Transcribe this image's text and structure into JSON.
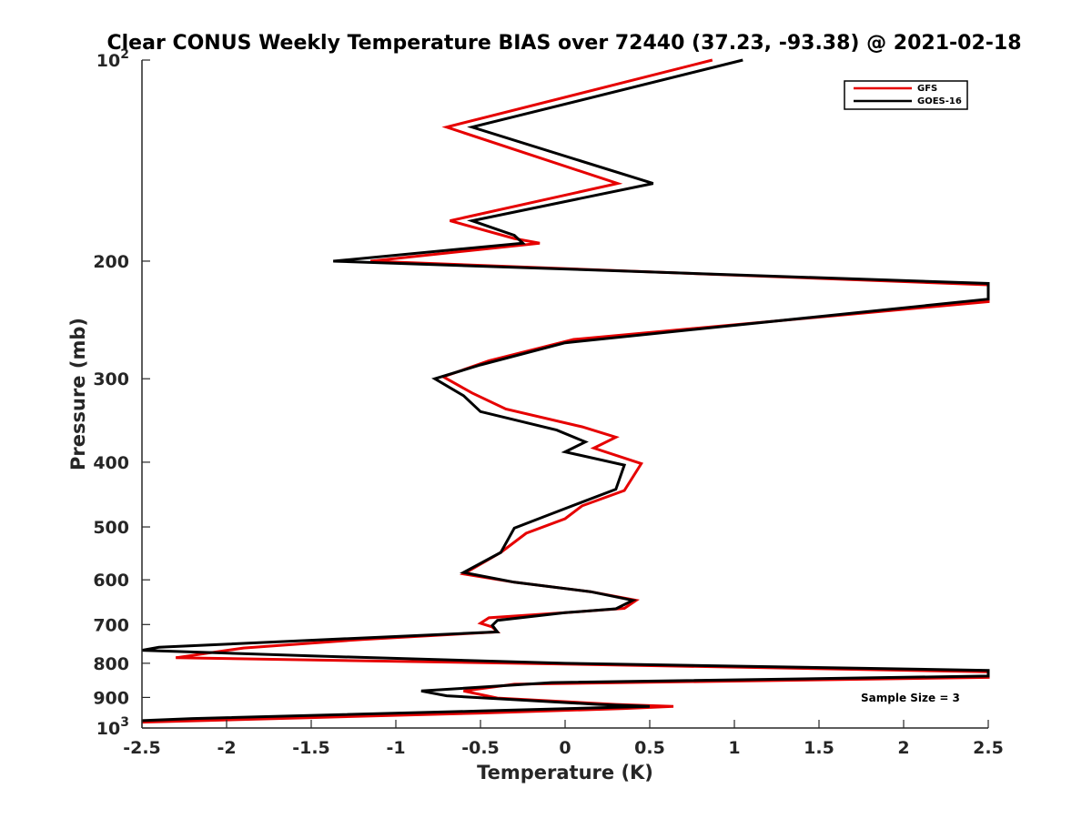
{
  "chart_data": {
    "type": "line",
    "title": "Clear CONUS Weekly Temperature BIAS over 72440 (37.23, -93.38) @ 2021-02-18",
    "xlabel": "Temperature (K)",
    "ylabel": "Pressure (mb)",
    "xlim": [
      -2.5,
      2.5
    ],
    "ylim": [
      100,
      1000
    ],
    "yscale": "log",
    "y_reversed": true,
    "x_ticks": [
      "-2.5",
      "-2",
      "-1.5",
      "-1",
      "-0.5",
      "0",
      "0.5",
      "1",
      "1.5",
      "2",
      "2.5"
    ],
    "x_tick_values": [
      -2.5,
      -2,
      -1.5,
      -1,
      -0.5,
      0,
      0.5,
      1,
      1.5,
      2,
      2.5
    ],
    "y_ticks": [
      {
        "value": 100,
        "base": "10",
        "exp": "2"
      },
      {
        "value": 200,
        "label": "200"
      },
      {
        "value": 300,
        "label": "300"
      },
      {
        "value": 400,
        "label": "400"
      },
      {
        "value": 500,
        "label": "500"
      },
      {
        "value": 600,
        "label": "600"
      },
      {
        "value": 700,
        "label": "700"
      },
      {
        "value": 800,
        "label": "800"
      },
      {
        "value": 900,
        "label": "900"
      },
      {
        "value": 1000,
        "base": "10",
        "exp": "3"
      }
    ],
    "legend_position": "top-right",
    "grid": false,
    "series": [
      {
        "name": "GFS",
        "color": "#e60000",
        "points": [
          [
            0.87,
            100
          ],
          [
            -0.7,
            126
          ],
          [
            0.31,
            153
          ],
          [
            -0.68,
            174
          ],
          [
            -0.3,
            185
          ],
          [
            -0.15,
            188
          ],
          [
            -1.15,
            200
          ],
          [
            2.5,
            217
          ],
          [
            2.5,
            230
          ],
          [
            0.05,
            262
          ],
          [
            -0.45,
            282
          ],
          [
            -0.72,
            298
          ],
          [
            -0.55,
            315
          ],
          [
            -0.35,
            333
          ],
          [
            0.1,
            354
          ],
          [
            0.3,
            367
          ],
          [
            0.17,
            381
          ],
          [
            0.45,
            402
          ],
          [
            0.35,
            441
          ],
          [
            0.1,
            465
          ],
          [
            0,
            486
          ],
          [
            -0.23,
            511
          ],
          [
            -0.38,
            546
          ],
          [
            -0.6,
            588
          ],
          [
            -0.3,
            605
          ],
          [
            0.15,
            625
          ],
          [
            0.42,
            644
          ],
          [
            0.35,
            662
          ],
          [
            0,
            672
          ],
          [
            -0.45,
            684
          ],
          [
            -0.5,
            697
          ],
          [
            -0.43,
            706
          ],
          [
            -0.4,
            718
          ],
          [
            -1.2,
            737
          ],
          [
            -1.9,
            759
          ],
          [
            -2.3,
            785
          ],
          [
            0,
            802
          ],
          [
            2.5,
            824
          ],
          [
            2.5,
            840
          ],
          [
            -0.3,
            860
          ],
          [
            -0.6,
            880
          ],
          [
            -0.4,
            902
          ],
          [
            0.3,
            922
          ],
          [
            0.64,
            928
          ],
          [
            0.35,
            935
          ],
          [
            -0.5,
            950
          ],
          [
            -1.5,
            965
          ],
          [
            -2.5,
            980
          ]
        ]
      },
      {
        "name": "GOES-16",
        "color": "#000000",
        "points": [
          [
            1.05,
            100
          ],
          [
            -0.55,
            126
          ],
          [
            0.52,
            153
          ],
          [
            -0.55,
            174
          ],
          [
            -0.3,
            183
          ],
          [
            -0.25,
            188
          ],
          [
            -1.37,
            200
          ],
          [
            2.5,
            216
          ],
          [
            2.5,
            228
          ],
          [
            0,
            265
          ],
          [
            -0.5,
            286
          ],
          [
            -0.77,
            300
          ],
          [
            -0.6,
            318
          ],
          [
            -0.5,
            336
          ],
          [
            -0.05,
            358
          ],
          [
            0.12,
            373
          ],
          [
            0,
            386
          ],
          [
            0.35,
            404
          ],
          [
            0.3,
            439
          ],
          [
            0.08,
            461
          ],
          [
            -0.1,
            480
          ],
          [
            -0.3,
            502
          ],
          [
            -0.38,
            546
          ],
          [
            -0.6,
            585
          ],
          [
            -0.3,
            605
          ],
          [
            0.15,
            625
          ],
          [
            0.4,
            644
          ],
          [
            0.3,
            663
          ],
          [
            0,
            672
          ],
          [
            -0.4,
            690
          ],
          [
            -0.43,
            702
          ],
          [
            -0.4,
            718
          ],
          [
            -1.3,
            735
          ],
          [
            -2.4,
            757
          ],
          [
            -2.5,
            765
          ],
          [
            -1.5,
            780
          ],
          [
            0,
            800
          ],
          [
            2.5,
            820
          ],
          [
            2.5,
            836
          ],
          [
            -0.08,
            855
          ],
          [
            -0.85,
            880
          ],
          [
            -0.7,
            895
          ],
          [
            0.2,
            922
          ],
          [
            0.5,
            928
          ],
          [
            -0.5,
            943
          ],
          [
            -2.2,
            968
          ],
          [
            -2.5,
            975
          ]
        ]
      }
    ],
    "annotations": [
      {
        "text": "Sample Size = 3"
      }
    ]
  }
}
